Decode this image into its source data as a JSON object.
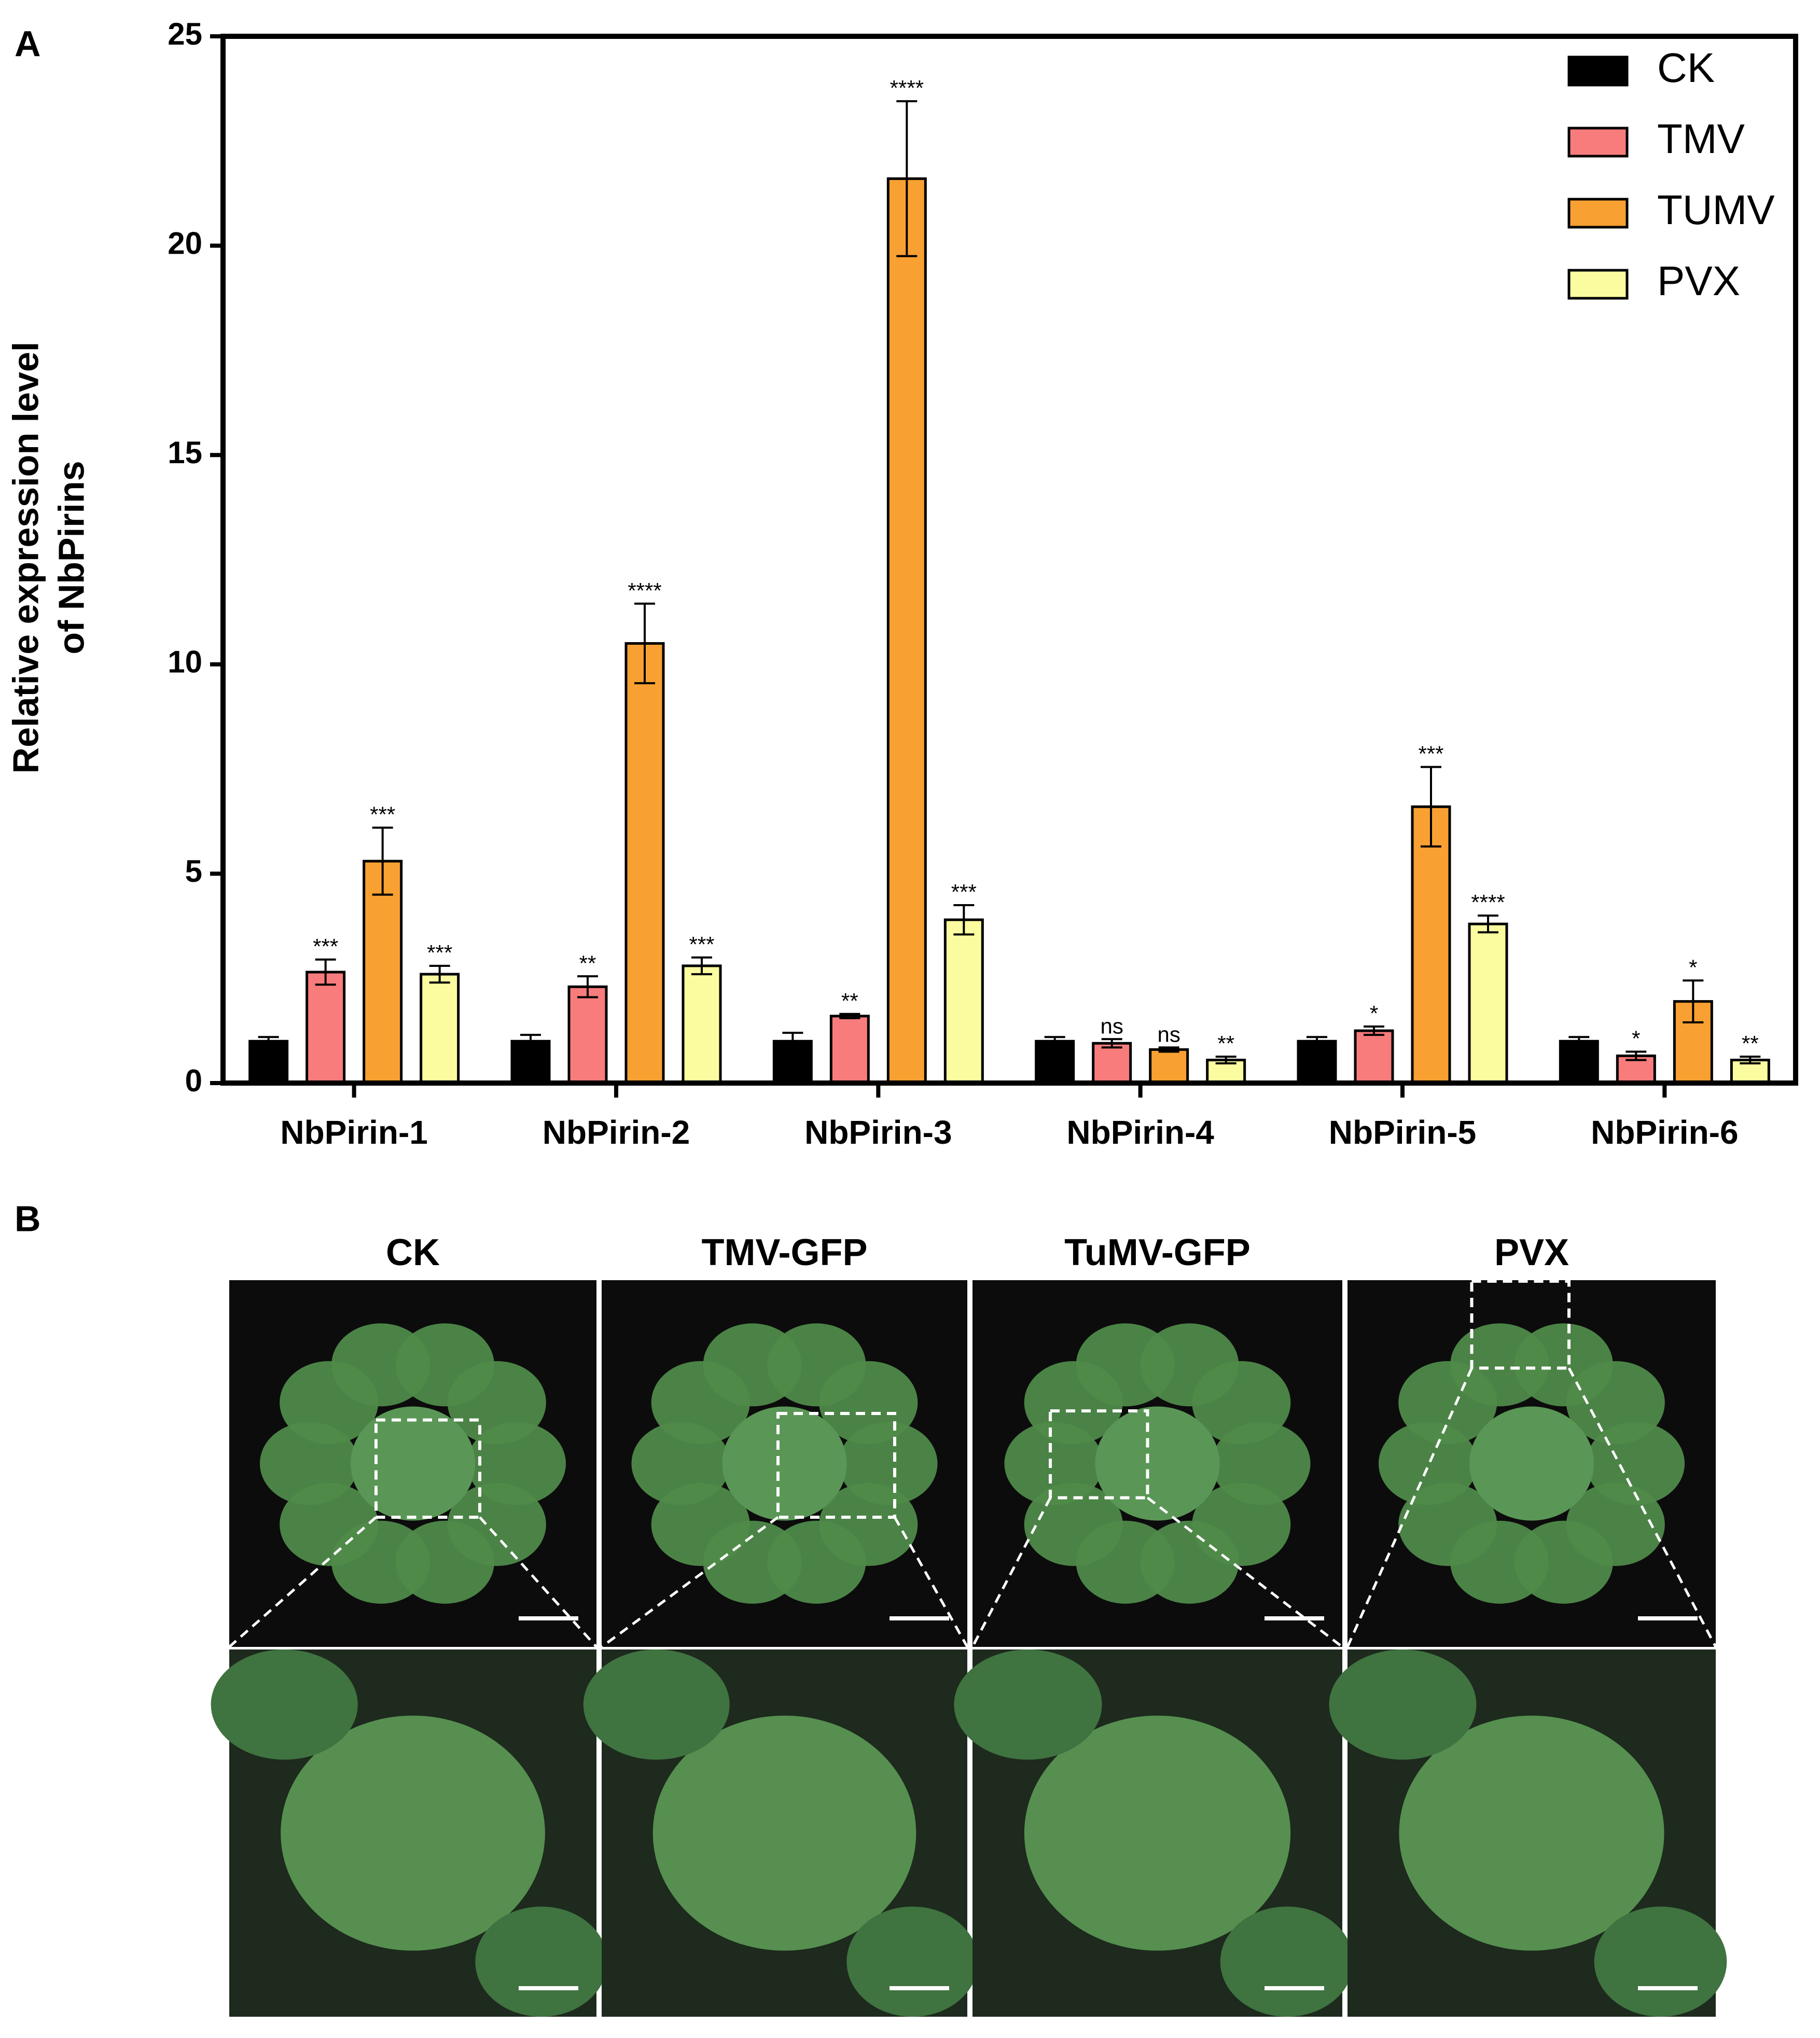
{
  "chart_data": {
    "type": "bar",
    "panel_label": "A",
    "ylabel": [
      "Relative expression level",
      "of NbPirins"
    ],
    "categories": [
      "NbPirin-1",
      "NbPirin-2",
      "NbPirin-3",
      "NbPirin-4",
      "NbPirin-5",
      "NbPirin-6"
    ],
    "series": [
      {
        "name": "CK",
        "color": "#000000",
        "values": [
          1.0,
          1.0,
          1.0,
          1.0,
          1.0,
          1.0
        ],
        "errors": [
          0.1,
          0.15,
          0.2,
          0.1,
          0.1,
          0.1
        ],
        "annotations": [
          null,
          null,
          null,
          null,
          null,
          null
        ]
      },
      {
        "name": "TMV",
        "color": "#f87c7c",
        "values": [
          2.65,
          2.3,
          1.6,
          0.95,
          1.25,
          0.65
        ],
        "errors": [
          0.3,
          0.25,
          0.05,
          0.1,
          0.1,
          0.1
        ],
        "annotations": [
          "***",
          "**",
          "**",
          "ns",
          "*",
          "*"
        ]
      },
      {
        "name": "TUMV",
        "color": "#f9a032",
        "values": [
          5.3,
          10.5,
          21.6,
          0.8,
          6.6,
          1.95
        ],
        "errors": [
          0.8,
          0.95,
          1.85,
          0.05,
          0.95,
          0.5
        ],
        "annotations": [
          "***",
          "****",
          "****",
          "ns",
          "***",
          "*"
        ]
      },
      {
        "name": "PVX",
        "color": "#fbfba0",
        "values": [
          2.6,
          2.8,
          3.9,
          0.55,
          3.8,
          0.55
        ],
        "errors": [
          0.2,
          0.2,
          0.35,
          0.08,
          0.2,
          0.08
        ],
        "annotations": [
          "***",
          "***",
          "***",
          "**",
          "****",
          "**"
        ]
      }
    ],
    "ylim": [
      0,
      25
    ],
    "yticks": [
      0,
      5,
      10,
      15,
      20,
      25
    ],
    "legend": "top-right"
  },
  "panel_b": {
    "label": "B",
    "titles": [
      "CK",
      "TMV-GFP",
      "TuMV-GFP",
      "PVX"
    ]
  }
}
